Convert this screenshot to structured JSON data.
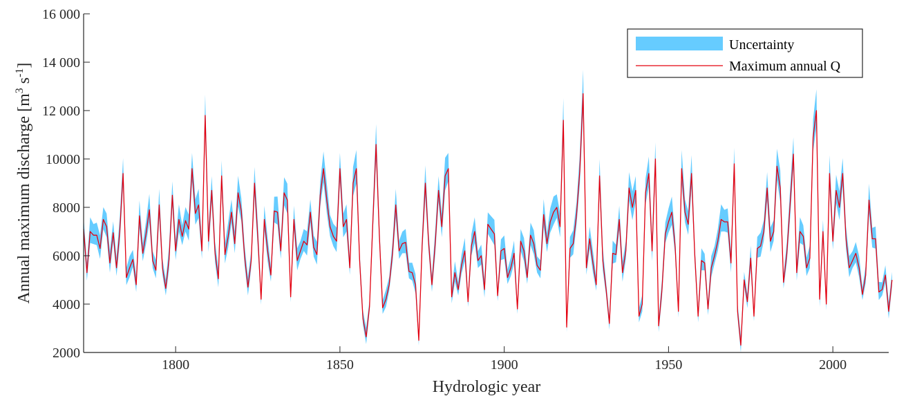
{
  "chart_data": {
    "type": "line",
    "xlabel": "Hydrologic year",
    "ylabel_parts": [
      "Annual maximum discharge [m",
      "3",
      " s",
      "-1",
      "]"
    ],
    "xlim": [
      1772,
      2017
    ],
    "ylim": [
      2000,
      16000
    ],
    "x_ticks": [
      1800,
      1850,
      1900,
      1950,
      2000
    ],
    "y_ticks": [
      {
        "value": 2000,
        "label": "2000"
      },
      {
        "value": 4000,
        "label": "4000"
      },
      {
        "value": 6000,
        "label": "6000"
      },
      {
        "value": 8000,
        "label": "8000"
      },
      {
        "value": 10000,
        "label": "10000"
      },
      {
        "value": 12000,
        "label": "12 000"
      },
      {
        "value": 14000,
        "label": "14 000"
      },
      {
        "value": 16000,
        "label": "16 000"
      }
    ],
    "legend": {
      "position": "top-right",
      "items": [
        {
          "label": "Uncertainty",
          "kind": "patch",
          "color": "#66CCFF"
        },
        {
          "label": "Maximum annual Q",
          "kind": "line",
          "color": "#E4000F"
        }
      ]
    },
    "colors": {
      "band": "#66CCFF",
      "line": "#E4000F",
      "axis": "#262626"
    },
    "series": [
      {
        "name": "Maximum annual Q",
        "x_start": 1772,
        "x_step": 1,
        "y": [
          7100,
          5300,
          7000,
          6850,
          6850,
          6300,
          7500,
          7200,
          5700,
          6950,
          5500,
          7000,
          9400,
          5100,
          5500,
          5850,
          4800,
          7650,
          6100,
          6900,
          7900,
          5800,
          5400,
          8100,
          5500,
          4650,
          5850,
          8500,
          6200,
          7500,
          6800,
          7450,
          7100,
          9600,
          7750,
          8100,
          6200,
          11800,
          6600,
          8700,
          6100,
          5050,
          9300,
          6050,
          6800,
          7800,
          6500,
          8600,
          7850,
          5950,
          4700,
          5800,
          9000,
          6800,
          4200,
          7500,
          6200,
          5200,
          7850,
          7800,
          6200,
          8600,
          8300,
          4300,
          7500,
          5800,
          6200,
          6600,
          6450,
          7800,
          6350,
          6050,
          8500,
          9600,
          8300,
          7200,
          6800,
          6600,
          9600,
          7200,
          7500,
          5500,
          9000,
          9600,
          5800,
          3400,
          2650,
          3900,
          7300,
          10600,
          6800,
          3850,
          4200,
          4800,
          6100,
          8100,
          6200,
          6500,
          6550,
          5350,
          5300,
          4800,
          2500,
          6400,
          9000,
          6500,
          4800,
          6500,
          8700,
          7200,
          9300,
          9600,
          4300,
          5300,
          4600,
          5600,
          6200,
          4100,
          6400,
          7000,
          5800,
          6000,
          4600,
          7300,
          7100,
          6900,
          4350,
          6200,
          6300,
          5100,
          5500,
          6100,
          3800,
          6600,
          6200,
          5100,
          6850,
          6500,
          5600,
          5400,
          7700,
          6500,
          7400,
          7800,
          8000,
          7200,
          11600,
          3050,
          6300,
          6500,
          7700,
          9500,
          12700,
          5500,
          6700,
          5700,
          4800,
          9300,
          5800,
          4600,
          3200,
          6100,
          6050,
          7500,
          5300,
          6200,
          8800,
          8000,
          8700,
          3500,
          4000,
          8600,
          9400,
          6200,
          10000,
          3100,
          4600,
          6900,
          7400,
          7800,
          6400,
          3700,
          9600,
          7800,
          7300,
          9400,
          6000,
          3500,
          5800,
          5700,
          3800,
          5500,
          6000,
          6600,
          7500,
          7400,
          7400,
          5700,
          9800,
          3700,
          2300,
          5000,
          4100,
          5900,
          3500,
          6300,
          6400,
          7000,
          8800,
          6600,
          7000,
          9700,
          8800,
          4900,
          6100,
          8100,
          10200,
          5300,
          7000,
          6800,
          5500,
          5900,
          10900,
          12000,
          4200,
          7000,
          4000,
          9400,
          6600,
          8700,
          8000,
          9400,
          6700,
          5500,
          5800,
          6100,
          5500,
          4400,
          5200,
          8300,
          6700,
          6700,
          4500,
          4600,
          5200,
          3700,
          5000
        ]
      }
    ]
  }
}
